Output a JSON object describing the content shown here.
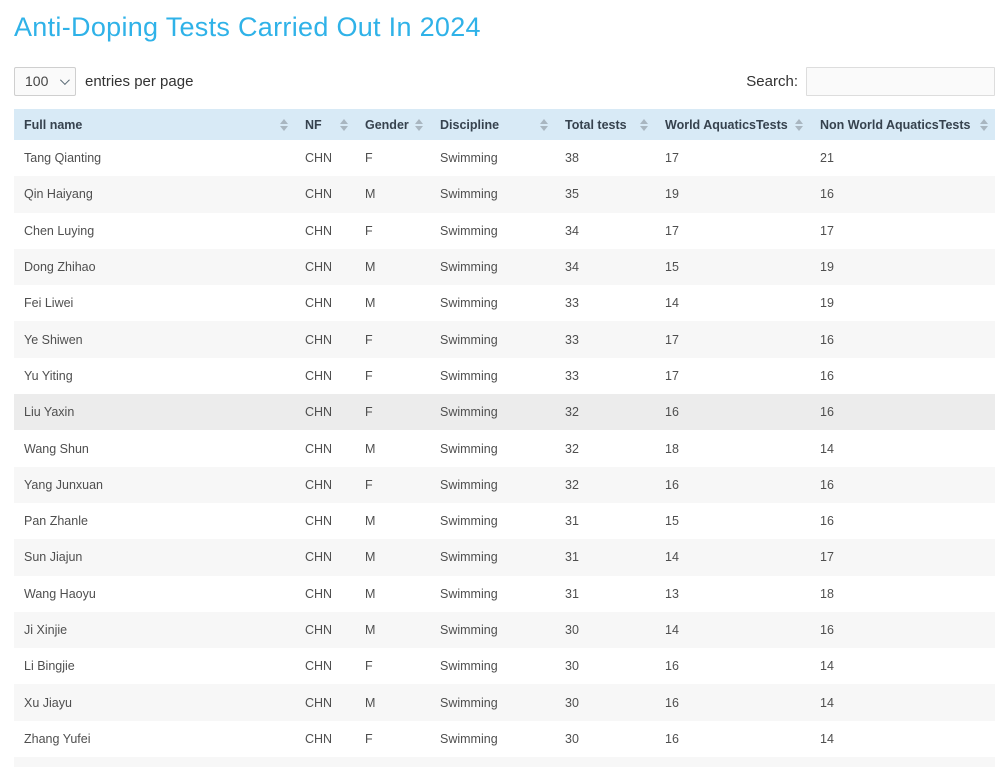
{
  "page": {
    "title": "Anti-Doping Tests Carried Out In 2024"
  },
  "controls": {
    "entries_select_value": "100",
    "entries_label": "entries per page",
    "search_label": "Search:",
    "search_value": "",
    "search_placeholder": ""
  },
  "colors": {
    "title": "#2fb2e8",
    "header_bg": "#d8eaf6",
    "header_text": "#36424e",
    "row_alt_bg": "#f7f7f7",
    "row_highlight_bg": "#ececec",
    "body_text": "#4f4f4f",
    "sort_icon": "#a9b6c0"
  },
  "table": {
    "columns": [
      {
        "label": "Full name"
      },
      {
        "label": "NF"
      },
      {
        "label": "Gender"
      },
      {
        "label": "Discipline"
      },
      {
        "label": "Total tests"
      },
      {
        "label": "World AquaticsTests"
      },
      {
        "label": "Non World AquaticsTests"
      }
    ],
    "column_keys": [
      "full_name",
      "nf",
      "gender",
      "discipline",
      "total_tests",
      "world_aquatics_tests",
      "non_world_aquatics_tests"
    ],
    "highlighted_row_index": 7,
    "partial_row_visible": true,
    "rows": [
      {
        "full_name": "Tang Qianting",
        "nf": "CHN",
        "gender": "F",
        "discipline": "Swimming",
        "total_tests": 38,
        "world_aquatics_tests": 17,
        "non_world_aquatics_tests": 21
      },
      {
        "full_name": "Qin Haiyang",
        "nf": "CHN",
        "gender": "M",
        "discipline": "Swimming",
        "total_tests": 35,
        "world_aquatics_tests": 19,
        "non_world_aquatics_tests": 16
      },
      {
        "full_name": "Chen Luying",
        "nf": "CHN",
        "gender": "F",
        "discipline": "Swimming",
        "total_tests": 34,
        "world_aquatics_tests": 17,
        "non_world_aquatics_tests": 17
      },
      {
        "full_name": "Dong Zhihao",
        "nf": "CHN",
        "gender": "M",
        "discipline": "Swimming",
        "total_tests": 34,
        "world_aquatics_tests": 15,
        "non_world_aquatics_tests": 19
      },
      {
        "full_name": "Fei Liwei",
        "nf": "CHN",
        "gender": "M",
        "discipline": "Swimming",
        "total_tests": 33,
        "world_aquatics_tests": 14,
        "non_world_aquatics_tests": 19
      },
      {
        "full_name": "Ye Shiwen",
        "nf": "CHN",
        "gender": "F",
        "discipline": "Swimming",
        "total_tests": 33,
        "world_aquatics_tests": 17,
        "non_world_aquatics_tests": 16
      },
      {
        "full_name": "Yu Yiting",
        "nf": "CHN",
        "gender": "F",
        "discipline": "Swimming",
        "total_tests": 33,
        "world_aquatics_tests": 17,
        "non_world_aquatics_tests": 16
      },
      {
        "full_name": "Liu Yaxin",
        "nf": "CHN",
        "gender": "F",
        "discipline": "Swimming",
        "total_tests": 32,
        "world_aquatics_tests": 16,
        "non_world_aquatics_tests": 16
      },
      {
        "full_name": "Wang Shun",
        "nf": "CHN",
        "gender": "M",
        "discipline": "Swimming",
        "total_tests": 32,
        "world_aquatics_tests": 18,
        "non_world_aquatics_tests": 14
      },
      {
        "full_name": "Yang Junxuan",
        "nf": "CHN",
        "gender": "F",
        "discipline": "Swimming",
        "total_tests": 32,
        "world_aquatics_tests": 16,
        "non_world_aquatics_tests": 16
      },
      {
        "full_name": "Pan Zhanle",
        "nf": "CHN",
        "gender": "M",
        "discipline": "Swimming",
        "total_tests": 31,
        "world_aquatics_tests": 15,
        "non_world_aquatics_tests": 16
      },
      {
        "full_name": "Sun Jiajun",
        "nf": "CHN",
        "gender": "M",
        "discipline": "Swimming",
        "total_tests": 31,
        "world_aquatics_tests": 14,
        "non_world_aquatics_tests": 17
      },
      {
        "full_name": "Wang Haoyu",
        "nf": "CHN",
        "gender": "M",
        "discipline": "Swimming",
        "total_tests": 31,
        "world_aquatics_tests": 13,
        "non_world_aquatics_tests": 18
      },
      {
        "full_name": "Ji Xinjie",
        "nf": "CHN",
        "gender": "M",
        "discipline": "Swimming",
        "total_tests": 30,
        "world_aquatics_tests": 14,
        "non_world_aquatics_tests": 16
      },
      {
        "full_name": "Li Bingjie",
        "nf": "CHN",
        "gender": "F",
        "discipline": "Swimming",
        "total_tests": 30,
        "world_aquatics_tests": 16,
        "non_world_aquatics_tests": 14
      },
      {
        "full_name": "Xu Jiayu",
        "nf": "CHN",
        "gender": "M",
        "discipline": "Swimming",
        "total_tests": 30,
        "world_aquatics_tests": 16,
        "non_world_aquatics_tests": 14
      },
      {
        "full_name": "Zhang Yufei",
        "nf": "CHN",
        "gender": "F",
        "discipline": "Swimming",
        "total_tests": 30,
        "world_aquatics_tests": 16,
        "non_world_aquatics_tests": 14
      }
    ]
  }
}
